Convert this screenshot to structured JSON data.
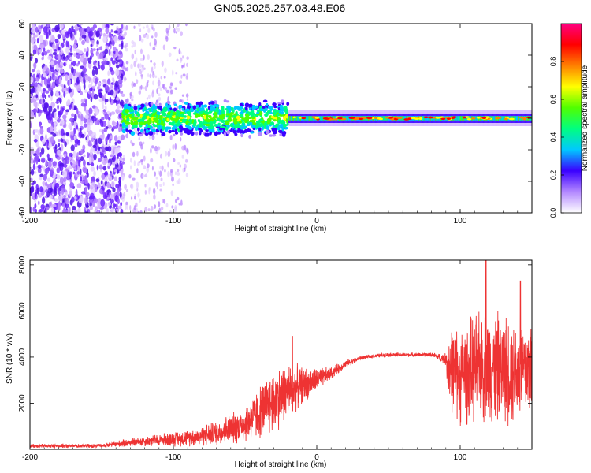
{
  "title": "GN05.2025.257.03.48.E06",
  "chart_data": [
    {
      "type": "heatmap",
      "name": "spectrogram",
      "xlabel": "Height of straight line (km)",
      "ylabel": "Frequency (Hz)",
      "xlim": [
        -200,
        150
      ],
      "ylim": [
        -60,
        60
      ],
      "xticks": [
        -200,
        -100,
        0,
        100
      ],
      "yticks": [
        -60,
        -40,
        -20,
        0,
        20,
        40,
        60
      ],
      "ytick_labels": [
        "-60",
        "-40",
        "-20",
        "0",
        "20",
        "40",
        "60"
      ],
      "colorbar": {
        "label": "Normalized spectral amplitude",
        "range": [
          0,
          1
        ],
        "ticks": [
          0,
          0.2,
          0.4,
          0.6,
          0.8
        ],
        "tick_labels": [
          "0.0",
          "0.2",
          "0.4",
          "0.6",
          "0.8"
        ],
        "colors": [
          "#ffffff",
          "#b388ff",
          "#3a00ff",
          "#00c8ff",
          "#00ff80",
          "#50ff00",
          "#ffff00",
          "#ff8000",
          "#ff0000",
          "#ff0080"
        ]
      },
      "regions": [
        {
          "x": [
            -200,
            -135
          ],
          "f": [
            -60,
            60
          ],
          "description_level": 0.3
        },
        {
          "x": [
            -135,
            -20
          ],
          "f": [
            -15,
            12
          ],
          "description_level": 0.35
        },
        {
          "x": [
            -20,
            150
          ],
          "f": [
            -4,
            4
          ],
          "description_level": 0.8
        }
      ]
    },
    {
      "type": "line",
      "name": "snr",
      "xlabel": "Height of straight line (km)",
      "ylabel": "SNR (10 * v/v)",
      "xlim": [
        -200,
        150
      ],
      "ylim": [
        0,
        8200
      ],
      "xticks": [
        -200,
        -100,
        0,
        100
      ],
      "yticks": [
        2000,
        4000,
        6000,
        8000
      ],
      "series": [
        {
          "name": "SNR",
          "color": "#ee3333",
          "envelope_x": [
            -200,
            -150,
            -130,
            -110,
            -90,
            -70,
            -50,
            -40,
            -30,
            -20,
            -10,
            0,
            10,
            20,
            30,
            40,
            50,
            60,
            70,
            80,
            90,
            92,
            100,
            110,
            120,
            130,
            140,
            150
          ],
          "envelope_y": [
            150,
            150,
            300,
            400,
            500,
            700,
            1100,
            1600,
            2100,
            2500,
            2800,
            3000,
            3300,
            3700,
            3950,
            4050,
            4100,
            4100,
            4100,
            4100,
            3900,
            3600,
            3200,
            3500,
            3600,
            3500,
            3400,
            3500
          ],
          "spread_y": [
            100,
            100,
            200,
            300,
            400,
            600,
            900,
            1300,
            1600,
            1400,
            900,
            600,
            300,
            200,
            100,
            100,
            100,
            100,
            100,
            100,
            300,
            2000,
            2400,
            2600,
            2800,
            2700,
            2600,
            2500
          ],
          "peaks": [
            {
              "x": -17,
              "y": 4900
            },
            {
              "x": 118,
              "y": 8200
            },
            {
              "x": 142,
              "y": 7300
            }
          ]
        }
      ]
    }
  ]
}
